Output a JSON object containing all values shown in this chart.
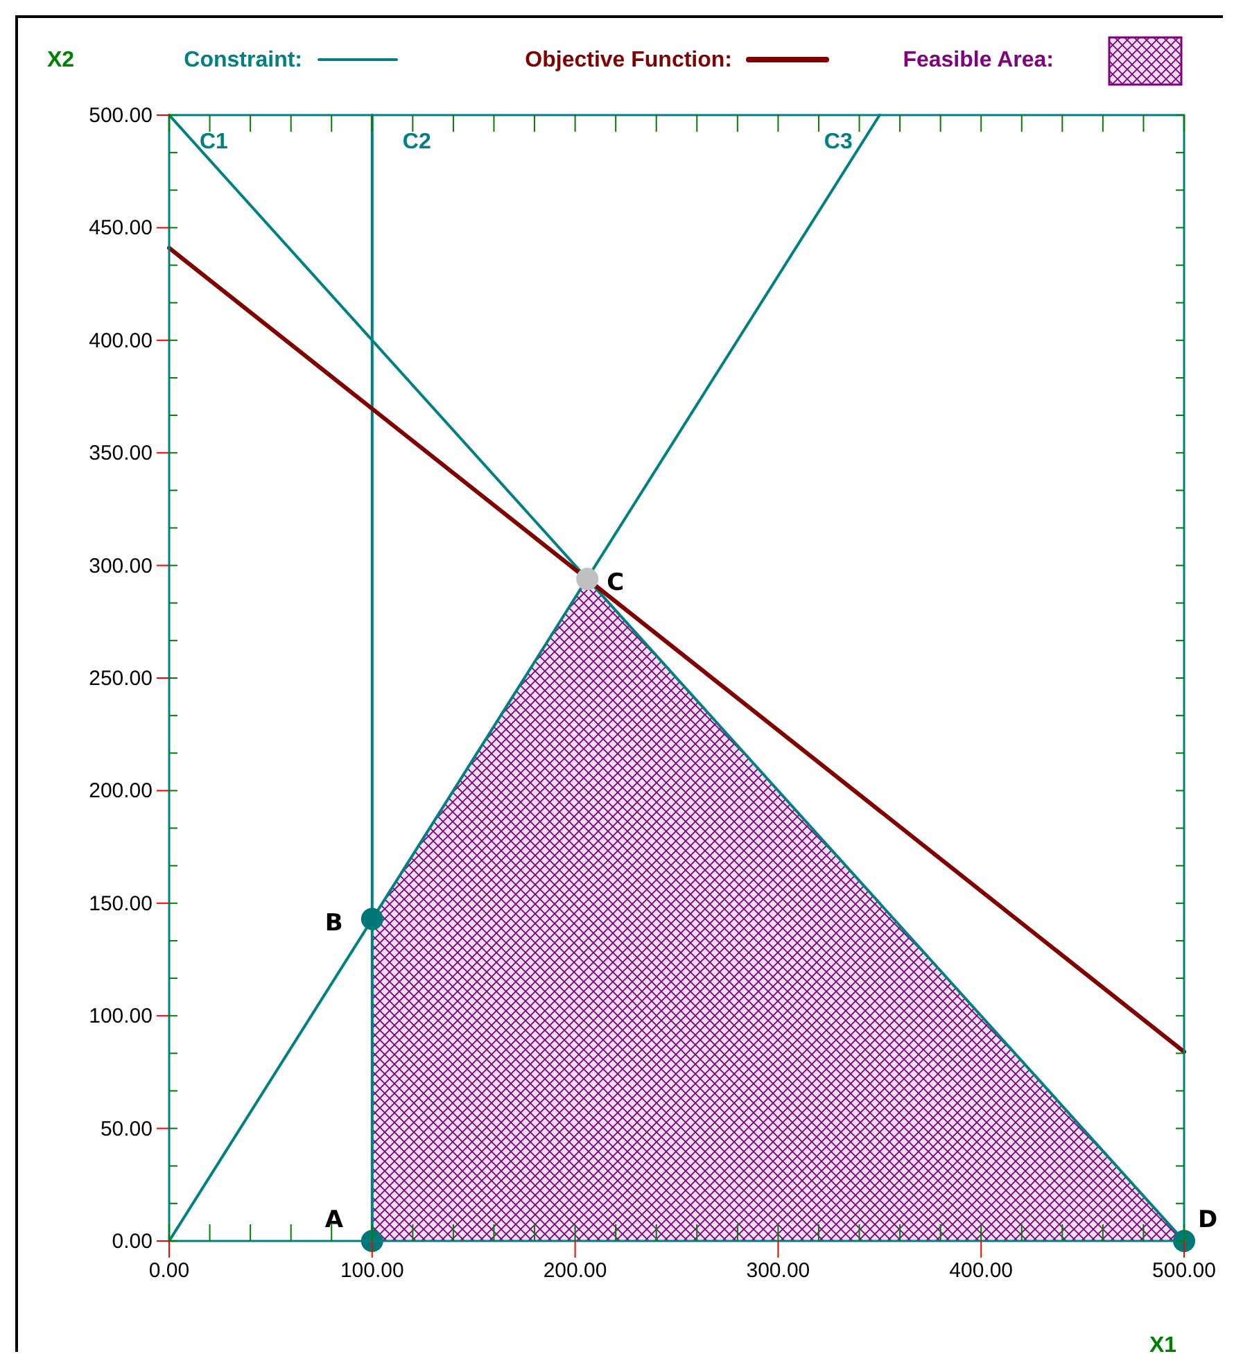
{
  "chart_data": {
    "type": "line",
    "xlabel": "X1",
    "ylabel": "X2",
    "xlim": [
      0,
      500
    ],
    "ylim": [
      0,
      500
    ],
    "xticks": [
      {
        "value": 0,
        "label": "0.00"
      },
      {
        "value": 100,
        "label": "100.00"
      },
      {
        "value": 200,
        "label": "200.00"
      },
      {
        "value": 300,
        "label": "300.00"
      },
      {
        "value": 400,
        "label": "400.00"
      },
      {
        "value": 500,
        "label": "500.00"
      }
    ],
    "yticks": [
      {
        "value": 0,
        "label": "0.00"
      },
      {
        "value": 50,
        "label": "50.00"
      },
      {
        "value": 100,
        "label": "100.00"
      },
      {
        "value": 150,
        "label": "150.00"
      },
      {
        "value": 200,
        "label": "200.00"
      },
      {
        "value": 250,
        "label": "250.00"
      },
      {
        "value": 300,
        "label": "300.00"
      },
      {
        "value": 350,
        "label": "350.00"
      },
      {
        "value": 400,
        "label": "400.00"
      },
      {
        "value": 450,
        "label": "450.00"
      },
      {
        "value": 500,
        "label": "500.00"
      }
    ],
    "grid": false,
    "legend": "top",
    "annotations": [
      "Constraint:"
    ],
    "series": [
      {
        "type": "area",
        "name": "Feasible Area:",
        "color": "#800080",
        "x": [
          100,
          100,
          206,
          500
        ],
        "values": [
          0,
          143,
          294,
          0
        ]
      },
      {
        "name": "C1",
        "color": "#008080",
        "x": [
          0,
          500
        ],
        "values": [
          500,
          0
        ]
      },
      {
        "name": "C2",
        "color": "#008080",
        "x": [
          100,
          100
        ],
        "values": [
          0,
          500
        ]
      },
      {
        "name": "C3",
        "color": "#008080",
        "x": [
          0,
          350
        ],
        "values": [
          0,
          500
        ]
      },
      {
        "name": "Objective Function:",
        "color": "#800000",
        "x": [
          0,
          500
        ],
        "values": [
          441,
          84
        ]
      },
      {
        "type": "scatter",
        "x": [
          100,
          100,
          206,
          500
        ],
        "values": [
          0,
          143,
          294,
          0
        ],
        "colors": [
          "#007878",
          "#007878",
          "#c0c0c0",
          "#007878"
        ],
        "value_labels": [
          "A",
          "B",
          "C",
          "D"
        ]
      }
    ]
  }
}
